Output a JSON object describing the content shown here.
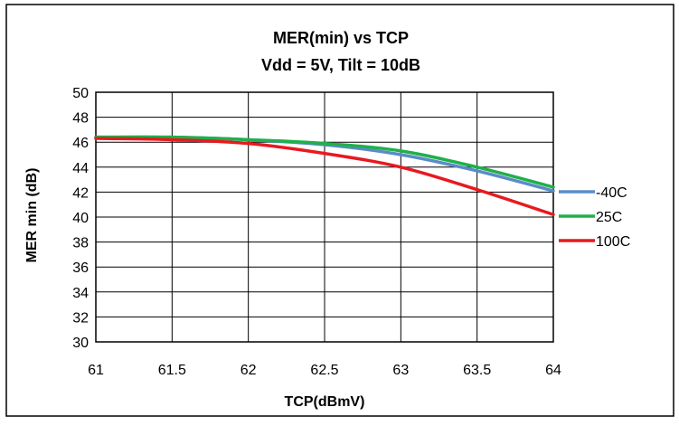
{
  "chart_data": {
    "type": "line",
    "title": "MER(min) vs TCP",
    "subtitle": "Vdd = 5V, Tilt = 10dB",
    "xlabel": "TCP(dBmV)",
    "ylabel": "MER min (dB)",
    "xlim": [
      61,
      64
    ],
    "ylim": [
      30,
      50
    ],
    "xticks": [
      61,
      61.5,
      62,
      62.5,
      63,
      63.5,
      64
    ],
    "xtick_labels": [
      "61",
      "61.5",
      "62",
      "62.5",
      "63",
      "63.5",
      "64"
    ],
    "yticks": [
      30,
      32,
      34,
      36,
      38,
      40,
      42,
      44,
      46,
      48,
      50
    ],
    "ytick_labels": [
      "30",
      "32",
      "34",
      "36",
      "38",
      "40",
      "42",
      "44",
      "46",
      "48",
      "50"
    ],
    "grid": true,
    "legend_position": "right",
    "x": [
      61,
      61.5,
      62,
      62.5,
      63,
      63.5,
      64
    ],
    "series": [
      {
        "name": "-40C",
        "color": "#5b8cc7",
        "values": [
          46.4,
          46.4,
          46.2,
          45.8,
          45.0,
          43.7,
          42.1
        ]
      },
      {
        "name": "25C",
        "color": "#1fb04b",
        "values": [
          46.4,
          46.4,
          46.2,
          45.9,
          45.3,
          44.0,
          42.4
        ]
      },
      {
        "name": "100C",
        "color": "#e8191f",
        "values": [
          46.3,
          46.2,
          45.9,
          45.1,
          44.0,
          42.2,
          40.2
        ]
      }
    ]
  }
}
